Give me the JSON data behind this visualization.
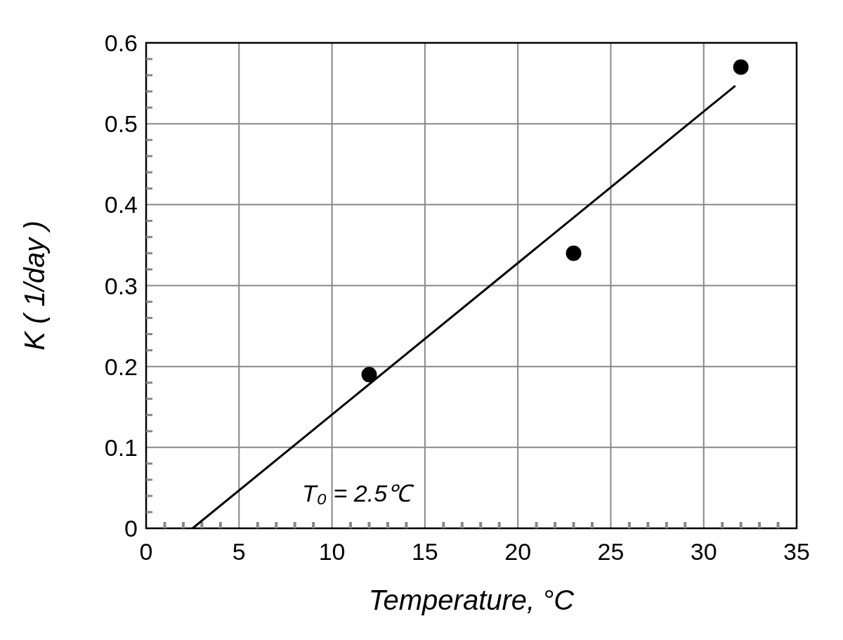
{
  "chart_data": {
    "type": "scatter",
    "xlabel": "Temperature,  °C",
    "ylabel": "K ( 1/day )",
    "xlim": [
      0,
      35
    ],
    "ylim": [
      0,
      0.6
    ],
    "xticks": [
      0,
      {
        "value": 1,
        "label": null
      },
      {
        "value": 2,
        "label": null
      },
      {
        "value": 3,
        "label": null
      },
      {
        "value": 4,
        "label": null
      },
      5,
      {
        "value": 6,
        "label": null
      },
      {
        "value": 7,
        "label": null
      },
      {
        "value": 8,
        "label": null
      },
      {
        "value": 9,
        "label": null
      },
      10,
      {
        "value": 11,
        "label": null
      },
      {
        "value": 12,
        "label": null
      },
      {
        "value": 13,
        "label": null
      },
      {
        "value": 14,
        "label": null
      },
      15,
      {
        "value": 16,
        "label": null
      },
      {
        "value": 17,
        "label": null
      },
      {
        "value": 18,
        "label": null
      },
      {
        "value": 19,
        "label": null
      },
      20,
      {
        "value": 21,
        "label": null
      },
      {
        "value": 22,
        "label": null
      },
      {
        "value": 23,
        "label": null
      },
      {
        "value": 24,
        "label": null
      },
      25,
      {
        "value": 26,
        "label": null
      },
      {
        "value": 27,
        "label": null
      },
      {
        "value": 28,
        "label": null
      },
      {
        "value": 29,
        "label": null
      },
      30,
      {
        "value": 31,
        "label": null
      },
      {
        "value": 32,
        "label": null
      },
      {
        "value": 33,
        "label": null
      },
      {
        "value": 34,
        "label": null
      },
      35
    ],
    "yticks": [
      0,
      {
        "value": 0.02,
        "label": null
      },
      {
        "value": 0.04,
        "label": null
      },
      {
        "value": 0.06,
        "label": null
      },
      {
        "value": 0.08,
        "label": null
      },
      0.1,
      {
        "value": 0.12,
        "label": null
      },
      {
        "value": 0.14,
        "label": null
      },
      {
        "value": 0.16,
        "label": null
      },
      {
        "value": 0.18,
        "label": null
      },
      0.2,
      {
        "value": 0.22,
        "label": null
      },
      {
        "value": 0.24,
        "label": null
      },
      {
        "value": 0.26,
        "label": null
      },
      {
        "value": 0.28,
        "label": null
      },
      0.3,
      {
        "value": 0.32,
        "label": null
      },
      {
        "value": 0.34,
        "label": null
      },
      {
        "value": 0.36,
        "label": null
      },
      {
        "value": 0.38,
        "label": null
      },
      0.4,
      {
        "value": 0.42,
        "label": null
      },
      {
        "value": 0.44,
        "label": null
      },
      {
        "value": 0.46,
        "label": null
      },
      {
        "value": 0.48,
        "label": null
      },
      0.5,
      {
        "value": 0.52,
        "label": null
      },
      {
        "value": 0.54,
        "label": null
      },
      {
        "value": 0.56,
        "label": null
      },
      {
        "value": 0.58,
        "label": null
      },
      0.6
    ],
    "grid": true,
    "marker": "circle",
    "series": [
      {
        "color": "#000000",
        "x": [
          12,
          23,
          32
        ],
        "values": [
          0.19,
          0.34,
          0.57
        ]
      },
      {
        "type": "line",
        "color": "#000000",
        "marker": "none",
        "x": [
          2.5,
          31.7
        ],
        "values": [
          0,
          0.547
        ]
      }
    ],
    "annotations": [
      "T₀ = 2.5℃"
    ]
  }
}
